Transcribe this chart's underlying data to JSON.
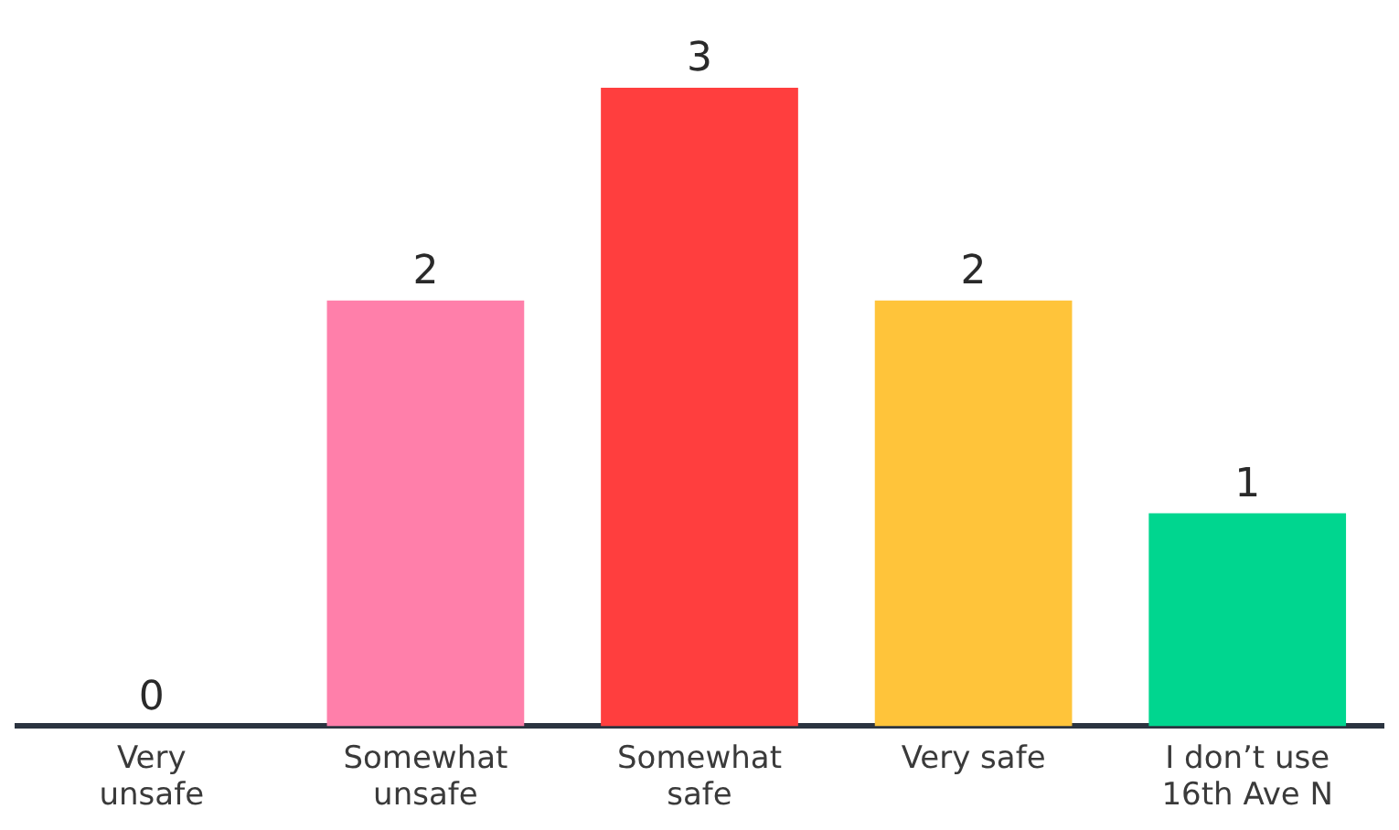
{
  "chart_data": {
    "type": "bar",
    "categories": [
      "Very\nunsafe",
      "Somewhat\nunsafe",
      "Somewhat\nsafe",
      "Very safe",
      "I don’t use\n16th Ave N"
    ],
    "values": [
      0,
      2,
      3,
      2,
      1
    ],
    "colors": [
      "#5b6ee8",
      "#ff7faa",
      "#ff3e3e",
      "#ffc43a",
      "#00d68f"
    ],
    "data_labels": true,
    "grid": false,
    "legend": false
  }
}
